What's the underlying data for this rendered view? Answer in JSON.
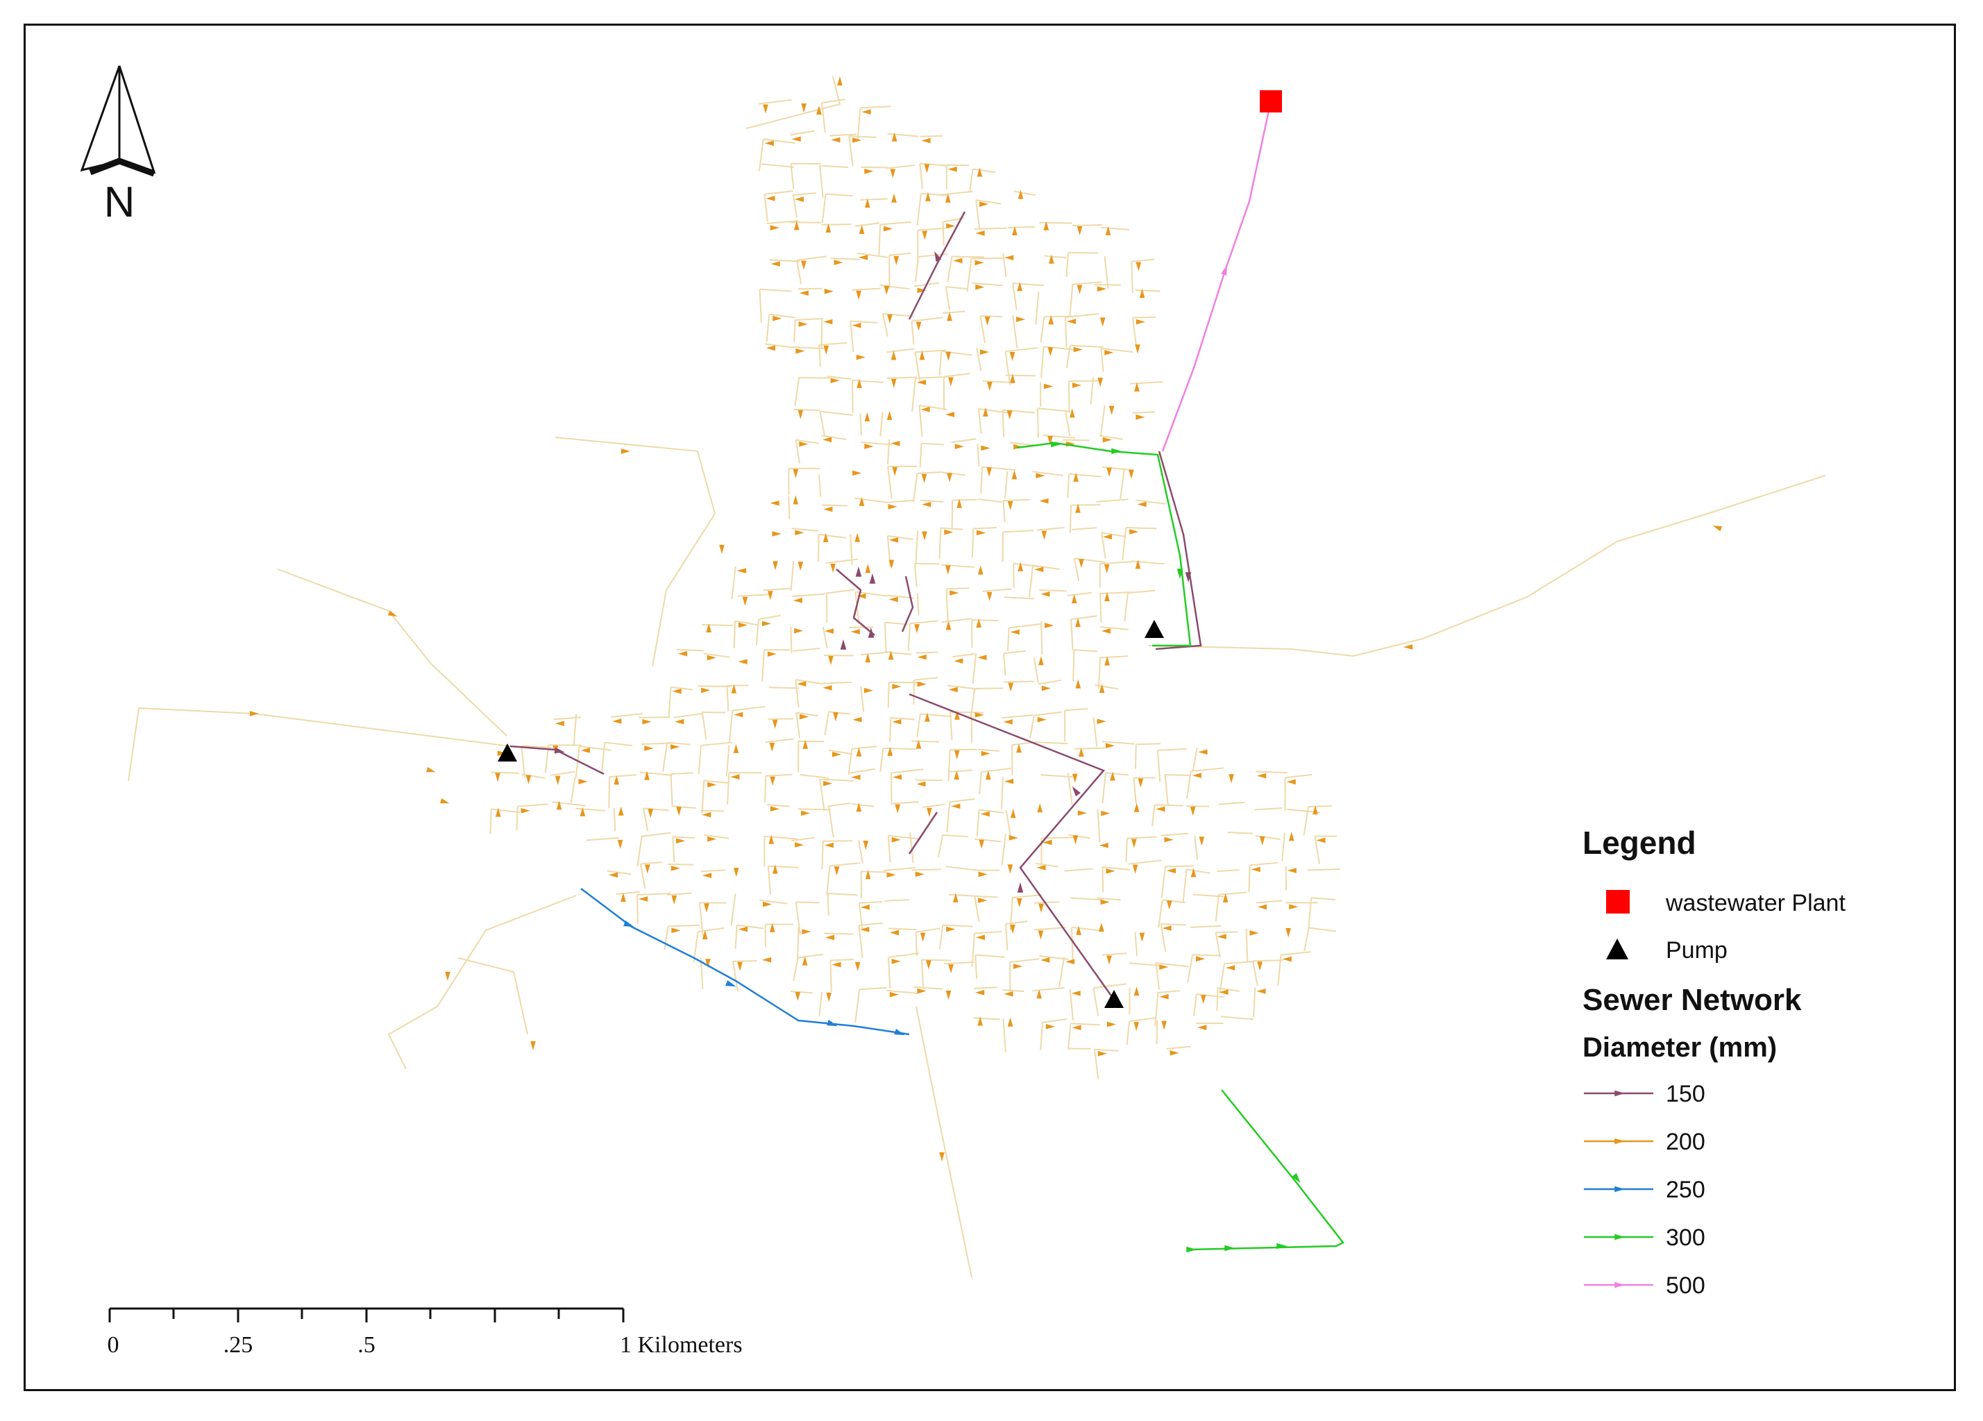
{
  "map": {
    "north_label": "N",
    "scale_bar": {
      "unit_label": "1 Kilometers",
      "tick_labels": [
        "0",
        ".25",
        ".5"
      ]
    },
    "legend": {
      "title": "Legend",
      "point_items": [
        {
          "label": "wastewater Plant",
          "symbol": "square",
          "color": "#ff0000"
        },
        {
          "label": "Pump",
          "symbol": "triangle",
          "color": "#000000"
        }
      ],
      "network_title": "Sewer Network",
      "diameter_title": "Diameter (mm)",
      "line_items": [
        {
          "label": "150",
          "color": "#8b4a6b"
        },
        {
          "label": "200",
          "color": "#e8961c"
        },
        {
          "label": "250",
          "color": "#1f7fd6"
        },
        {
          "label": "300",
          "color": "#22cc22"
        },
        {
          "label": "500",
          "color": "#f080e0"
        }
      ]
    },
    "colors": {
      "pipe_200_line": "#efd9a8",
      "pipe_200_arrow": "#e8961c",
      "pipe_150": "#8b4a6b",
      "pipe_250": "#1f7fd6",
      "pipe_300": "#22cc22",
      "pipe_500": "#f080e0",
      "plant": "#ff0000",
      "pump": "#000000"
    }
  }
}
